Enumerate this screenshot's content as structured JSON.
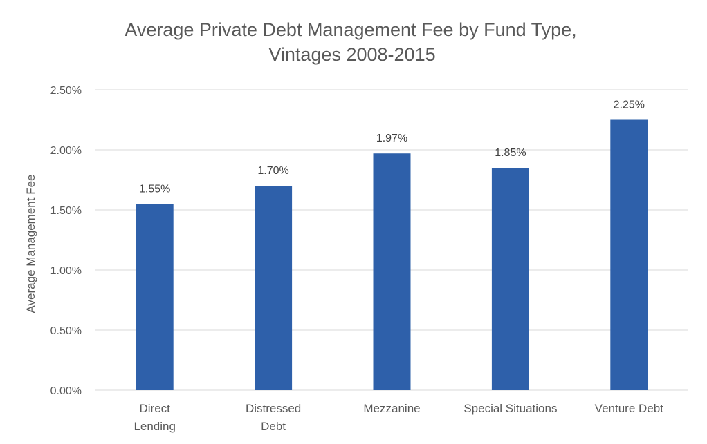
{
  "chart_data": {
    "type": "bar",
    "title_lines": [
      "Average Private Debt Management Fee by Fund Type,",
      "Vintages 2008-2015"
    ],
    "xlabel": "",
    "ylabel": "Average Management Fee",
    "categories": [
      [
        "Direct",
        "Lending"
      ],
      [
        "Distressed",
        "Debt"
      ],
      [
        "Mezzanine"
      ],
      [
        "Special Situations"
      ],
      [
        "Venture Debt"
      ]
    ],
    "values": [
      1.55,
      1.7,
      1.97,
      1.85,
      2.25
    ],
    "data_labels": [
      "1.55%",
      "1.70%",
      "1.97%",
      "1.85%",
      "2.25%"
    ],
    "ylim": [
      0,
      2.5
    ],
    "y_ticks": [
      0,
      0.5,
      1.0,
      1.5,
      2.0,
      2.5
    ],
    "y_tick_labels": [
      "0.00%",
      "0.50%",
      "1.00%",
      "1.50%",
      "2.00%",
      "2.50%"
    ],
    "grid": true,
    "legend": "none",
    "bar_color": "#2e60aa"
  }
}
